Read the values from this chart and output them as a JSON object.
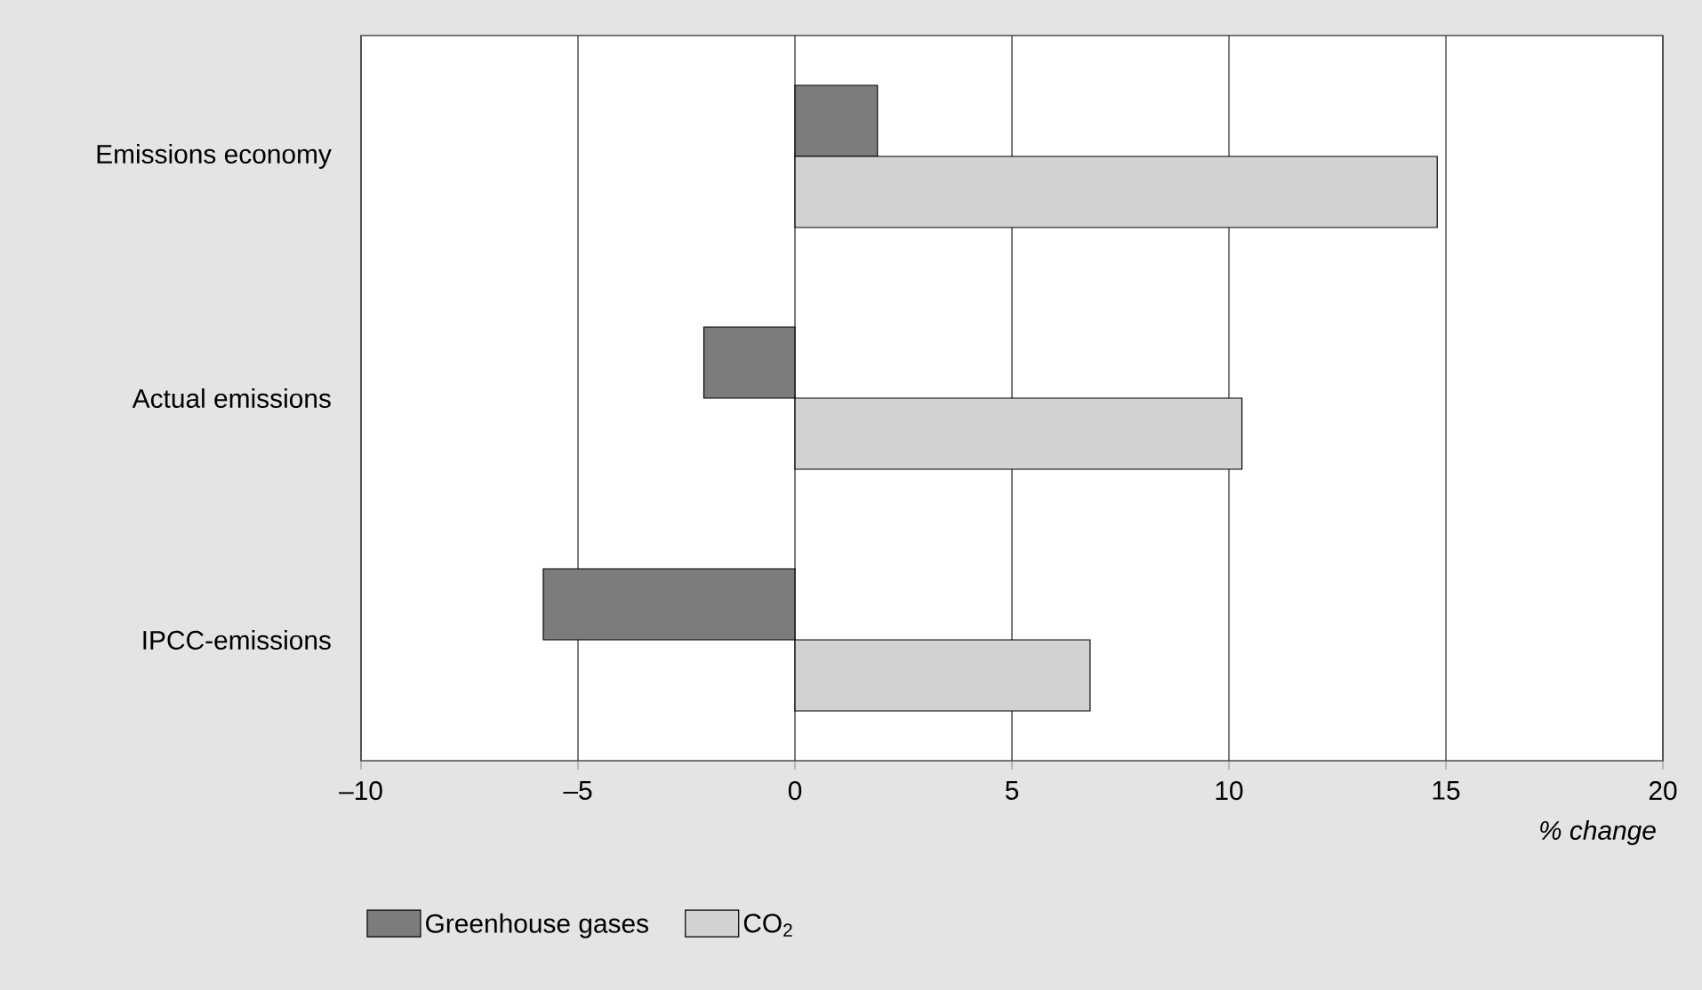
{
  "chart_data": {
    "type": "bar",
    "orientation": "horizontal",
    "categories": [
      "Emissions economy",
      "Actual emissions",
      "IPCC-emissions"
    ],
    "series": [
      {
        "name": "Greenhouse gases",
        "color": "#7b7c7d",
        "values": [
          1.9,
          -2.1,
          -5.8
        ]
      },
      {
        "name": "CO$_{2}$",
        "color": "#d1d2d3",
        "values": [
          14.8,
          10.3,
          6.8
        ]
      }
    ],
    "xlim": [
      -10,
      20
    ],
    "xticks": [
      {
        "value": -10,
        "label": "–10"
      },
      {
        "value": -5,
        "label": "–5"
      },
      0,
      5,
      10,
      15,
      20
    ],
    "xlabel": "% change",
    "grid": "x",
    "legend": "bottom left"
  }
}
